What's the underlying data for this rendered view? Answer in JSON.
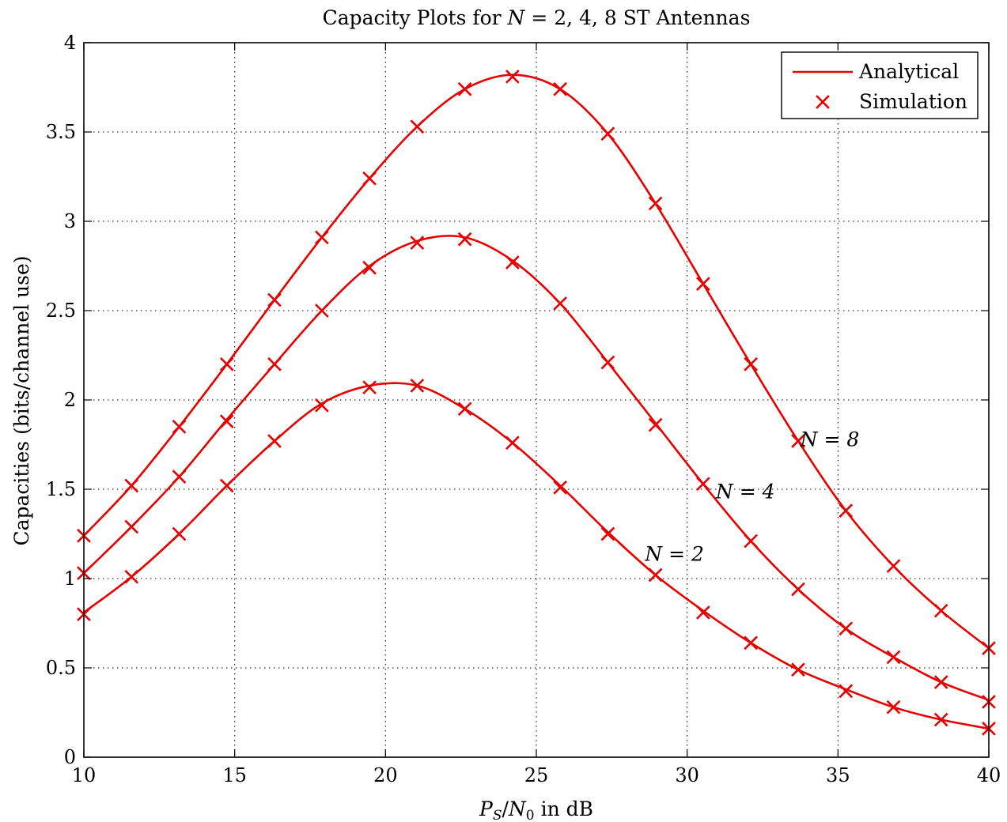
{
  "chart_data": {
    "type": "line",
    "title": "Capacity Plots for N = 2, 4, 8 ST Antennas",
    "xlabel": "P_S/N_0 in dB",
    "ylabel": "Capacities (bits/channel use)",
    "xlim": [
      10,
      40
    ],
    "ylim": [
      0,
      4
    ],
    "xticks": [
      10,
      15,
      20,
      25,
      30,
      35,
      40
    ],
    "yticks": [
      0,
      0.5,
      1,
      1.5,
      2,
      2.5,
      3,
      3.5,
      4
    ],
    "grid": true,
    "legend_position": "top-right",
    "legend": [
      {
        "label": "Analytical",
        "style": "line"
      },
      {
        "label": "Simulation",
        "style": "x-marker"
      }
    ],
    "color": "#e60000",
    "series": [
      {
        "label": "N = 8",
        "x": [
          10,
          11.58,
          13.16,
          14.74,
          16.32,
          17.89,
          19.47,
          21.05,
          22.63,
          24.21,
          25.79,
          27.37,
          28.95,
          30.53,
          32.11,
          33.68,
          35.26,
          36.84,
          38.42,
          40
        ],
        "analytical": [
          1.24,
          1.52,
          1.85,
          2.2,
          2.56,
          2.91,
          3.24,
          3.53,
          3.74,
          3.82,
          3.74,
          3.49,
          3.1,
          2.65,
          2.2,
          1.77,
          1.38,
          1.07,
          0.82,
          0.61
        ],
        "simulation": [
          1.24,
          1.52,
          1.85,
          2.2,
          2.56,
          2.91,
          3.24,
          3.53,
          3.74,
          3.81,
          3.74,
          3.49,
          3.1,
          2.65,
          2.2,
          1.77,
          1.38,
          1.07,
          0.82,
          0.61
        ]
      },
      {
        "label": "N = 4",
        "x": [
          10,
          11.58,
          13.16,
          14.74,
          16.32,
          17.89,
          19.47,
          21.05,
          22.63,
          24.21,
          25.79,
          27.37,
          28.95,
          30.53,
          32.11,
          33.68,
          35.26,
          36.84,
          38.42,
          40
        ],
        "analytical": [
          1.03,
          1.29,
          1.57,
          1.89,
          2.2,
          2.5,
          2.75,
          2.89,
          2.91,
          2.78,
          2.54,
          2.21,
          1.87,
          1.53,
          1.21,
          0.94,
          0.72,
          0.56,
          0.42,
          0.32
        ],
        "simulation": [
          1.03,
          1.29,
          1.57,
          1.88,
          2.2,
          2.5,
          2.74,
          2.88,
          2.9,
          2.77,
          2.54,
          2.21,
          1.86,
          1.53,
          1.21,
          0.94,
          0.72,
          0.56,
          0.42,
          0.31
        ]
      },
      {
        "label": "N = 2",
        "x": [
          10,
          11.58,
          13.16,
          14.74,
          16.32,
          17.89,
          19.47,
          21.05,
          22.63,
          24.21,
          25.79,
          27.37,
          28.95,
          30.53,
          32.11,
          33.68,
          35.26,
          36.84,
          38.42,
          40
        ],
        "analytical": [
          0.81,
          1.01,
          1.25,
          1.52,
          1.77,
          1.98,
          2.08,
          2.08,
          1.95,
          1.76,
          1.52,
          1.26,
          1.02,
          0.82,
          0.64,
          0.49,
          0.38,
          0.28,
          0.21,
          0.16
        ],
        "simulation": [
          0.8,
          1.01,
          1.25,
          1.52,
          1.77,
          1.97,
          2.07,
          2.08,
          1.95,
          1.76,
          1.51,
          1.25,
          1.02,
          0.81,
          0.64,
          0.49,
          0.37,
          0.28,
          0.21,
          0.16
        ]
      }
    ]
  }
}
